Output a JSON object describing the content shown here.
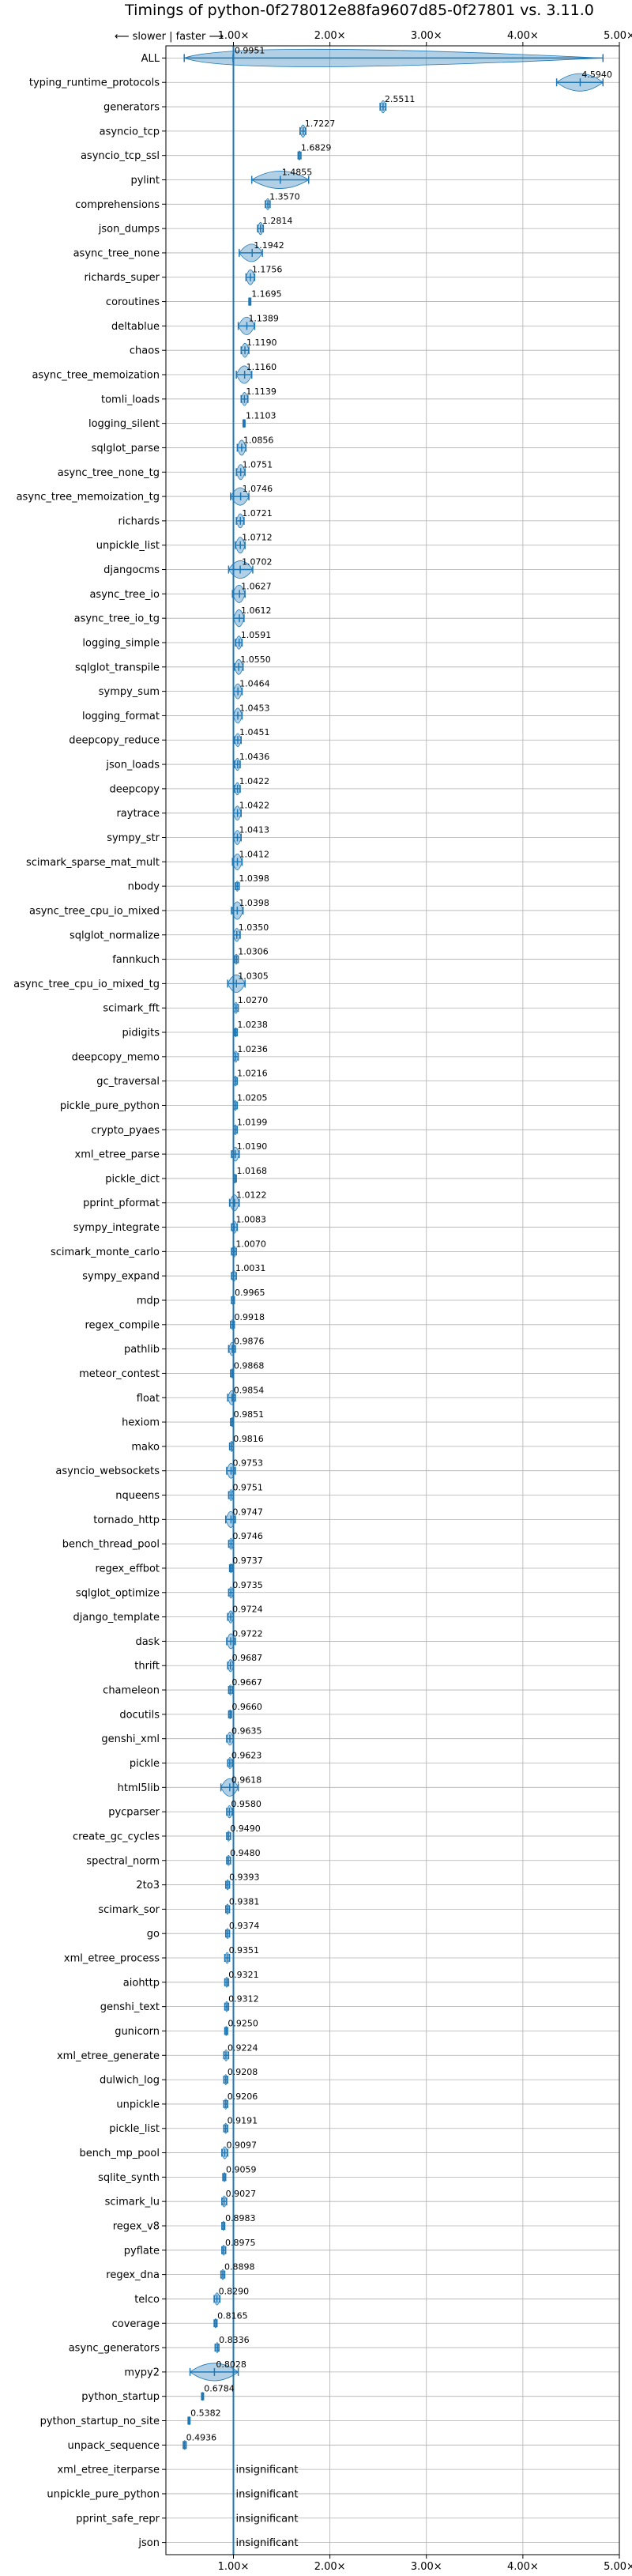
{
  "chart_data": {
    "type": "violin",
    "title": "Timings of python-0f278012e88fa9607d85-0f27801 vs. 3.11.0",
    "direction_note": "⟵ slower | faster ⟶",
    "xlabel": "",
    "ylabel": "",
    "xlim": [
      0.3,
      5.0
    ],
    "x_ticks": [
      1.0,
      2.0,
      3.0,
      4.0,
      5.0
    ],
    "x_tick_labels": [
      "1.00×",
      "2.00×",
      "3.00×",
      "4.00×",
      "5.00×"
    ],
    "grid": true,
    "reference_line": 1.0,
    "colors": {
      "violin": "#1f77b4",
      "reference": "#1f77b4",
      "grid": "#b0b0b0"
    },
    "insignificant_label": "insignificant",
    "benchmarks": [
      {
        "name": "ALL",
        "value": 0.9951,
        "label": "0.9951",
        "lo": 0.49,
        "hi": 4.83
      },
      {
        "name": "typing_runtime_protocols",
        "value": 4.594,
        "label": "4.5940",
        "lo": 4.35,
        "hi": 4.83
      },
      {
        "name": "generators",
        "value": 2.5511,
        "label": "2.5511",
        "lo": 2.52,
        "hi": 2.58
      },
      {
        "name": "asyncio_tcp",
        "value": 1.7227,
        "label": "1.7227",
        "lo": 1.69,
        "hi": 1.75
      },
      {
        "name": "asyncio_tcp_ssl",
        "value": 1.6829,
        "label": "1.6829",
        "lo": 1.67,
        "hi": 1.7
      },
      {
        "name": "pylint",
        "value": 1.4855,
        "label": "1.4855",
        "lo": 1.19,
        "hi": 1.78
      },
      {
        "name": "comprehensions",
        "value": 1.357,
        "label": "1.3570",
        "lo": 1.33,
        "hi": 1.38
      },
      {
        "name": "json_dumps",
        "value": 1.2814,
        "label": "1.2814",
        "lo": 1.25,
        "hi": 1.31
      },
      {
        "name": "async_tree_none",
        "value": 1.1942,
        "label": "1.1942",
        "lo": 1.06,
        "hi": 1.3
      },
      {
        "name": "richards_super",
        "value": 1.1756,
        "label": "1.1756",
        "lo": 1.13,
        "hi": 1.22
      },
      {
        "name": "coroutines",
        "value": 1.1695,
        "label": "1.1695",
        "lo": 1.16,
        "hi": 1.18
      },
      {
        "name": "deltablue",
        "value": 1.1389,
        "label": "1.1389",
        "lo": 1.05,
        "hi": 1.22
      },
      {
        "name": "chaos",
        "value": 1.119,
        "label": "1.1190",
        "lo": 1.08,
        "hi": 1.16
      },
      {
        "name": "async_tree_memoization",
        "value": 1.116,
        "label": "1.1160",
        "lo": 1.03,
        "hi": 1.19
      },
      {
        "name": "tomli_loads",
        "value": 1.1139,
        "label": "1.1139",
        "lo": 1.08,
        "hi": 1.15
      },
      {
        "name": "logging_silent",
        "value": 1.1103,
        "label": "1.1103",
        "lo": 1.1,
        "hi": 1.12
      },
      {
        "name": "sqlglot_parse",
        "value": 1.0856,
        "label": "1.0856",
        "lo": 1.04,
        "hi": 1.13
      },
      {
        "name": "async_tree_none_tg",
        "value": 1.0751,
        "label": "1.0751",
        "lo": 1.03,
        "hi": 1.12
      },
      {
        "name": "async_tree_memoization_tg",
        "value": 1.0746,
        "label": "1.0746",
        "lo": 0.97,
        "hi": 1.16
      },
      {
        "name": "richards",
        "value": 1.0721,
        "label": "1.0721",
        "lo": 1.03,
        "hi": 1.11
      },
      {
        "name": "unpickle_list",
        "value": 1.0712,
        "label": "1.0712",
        "lo": 1.02,
        "hi": 1.12
      },
      {
        "name": "djangocms",
        "value": 1.0702,
        "label": "1.0702",
        "lo": 0.95,
        "hi": 1.2
      },
      {
        "name": "async_tree_io",
        "value": 1.0627,
        "label": "1.0627",
        "lo": 0.99,
        "hi": 1.12
      },
      {
        "name": "async_tree_io_tg",
        "value": 1.0612,
        "label": "1.0612",
        "lo": 1.0,
        "hi": 1.11
      },
      {
        "name": "logging_simple",
        "value": 1.0591,
        "label": "1.0591",
        "lo": 1.02,
        "hi": 1.09
      },
      {
        "name": "sqlglot_transpile",
        "value": 1.055,
        "label": "1.0550",
        "lo": 1.01,
        "hi": 1.1
      },
      {
        "name": "sympy_sum",
        "value": 1.0464,
        "label": "1.0464",
        "lo": 1.0,
        "hi": 1.09
      },
      {
        "name": "logging_format",
        "value": 1.0453,
        "label": "1.0453",
        "lo": 1.0,
        "hi": 1.09
      },
      {
        "name": "deepcopy_reduce",
        "value": 1.0451,
        "label": "1.0451",
        "lo": 1.01,
        "hi": 1.08
      },
      {
        "name": "json_loads",
        "value": 1.0436,
        "label": "1.0436",
        "lo": 1.01,
        "hi": 1.07
      },
      {
        "name": "deepcopy",
        "value": 1.0422,
        "label": "1.0422",
        "lo": 1.01,
        "hi": 1.07
      },
      {
        "name": "raytrace",
        "value": 1.0422,
        "label": "1.0422",
        "lo": 1.0,
        "hi": 1.08
      },
      {
        "name": "sympy_str",
        "value": 1.0413,
        "label": "1.0413",
        "lo": 1.0,
        "hi": 1.08
      },
      {
        "name": "scimark_sparse_mat_mult",
        "value": 1.0412,
        "label": "1.0412",
        "lo": 0.99,
        "hi": 1.09
      },
      {
        "name": "nbody",
        "value": 1.0398,
        "label": "1.0398",
        "lo": 1.02,
        "hi": 1.06
      },
      {
        "name": "async_tree_cpu_io_mixed",
        "value": 1.0398,
        "label": "1.0398",
        "lo": 0.98,
        "hi": 1.1
      },
      {
        "name": "sqlglot_normalize",
        "value": 1.035,
        "label": "1.0350",
        "lo": 1.0,
        "hi": 1.07
      },
      {
        "name": "fannkuch",
        "value": 1.0306,
        "label": "1.0306",
        "lo": 1.01,
        "hi": 1.05
      },
      {
        "name": "async_tree_cpu_io_mixed_tg",
        "value": 1.0305,
        "label": "1.0305",
        "lo": 0.94,
        "hi": 1.12
      },
      {
        "name": "scimark_fft",
        "value": 1.027,
        "label": "1.0270",
        "lo": 1.0,
        "hi": 1.05
      },
      {
        "name": "pidigits",
        "value": 1.0238,
        "label": "1.0238",
        "lo": 1.01,
        "hi": 1.04
      },
      {
        "name": "deepcopy_memo",
        "value": 1.0236,
        "label": "1.0236",
        "lo": 1.0,
        "hi": 1.05
      },
      {
        "name": "gc_traversal",
        "value": 1.0216,
        "label": "1.0216",
        "lo": 1.0,
        "hi": 1.04
      },
      {
        "name": "pickle_pure_python",
        "value": 1.0205,
        "label": "1.0205",
        "lo": 1.0,
        "hi": 1.04
      },
      {
        "name": "crypto_pyaes",
        "value": 1.0199,
        "label": "1.0199",
        "lo": 1.0,
        "hi": 1.04
      },
      {
        "name": "xml_etree_parse",
        "value": 1.019,
        "label": "1.0190",
        "lo": 0.98,
        "hi": 1.06
      },
      {
        "name": "pickle_dict",
        "value": 1.0168,
        "label": "1.0168",
        "lo": 1.0,
        "hi": 1.03
      },
      {
        "name": "pprint_pformat",
        "value": 1.0122,
        "label": "1.0122",
        "lo": 0.96,
        "hi": 1.06
      },
      {
        "name": "sympy_integrate",
        "value": 1.0083,
        "label": "1.0083",
        "lo": 0.98,
        "hi": 1.04
      },
      {
        "name": "scimark_monte_carlo",
        "value": 1.007,
        "label": "1.0070",
        "lo": 0.98,
        "hi": 1.03
      },
      {
        "name": "sympy_expand",
        "value": 1.0031,
        "label": "1.0031",
        "lo": 0.98,
        "hi": 1.03
      },
      {
        "name": "mdp",
        "value": 0.9965,
        "label": "0.9965",
        "lo": 0.98,
        "hi": 1.01
      },
      {
        "name": "regex_compile",
        "value": 0.9918,
        "label": "0.9918",
        "lo": 0.97,
        "hi": 1.01
      },
      {
        "name": "pathlib",
        "value": 0.9876,
        "label": "0.9876",
        "lo": 0.95,
        "hi": 1.02
      },
      {
        "name": "meteor_contest",
        "value": 0.9868,
        "label": "0.9868",
        "lo": 0.97,
        "hi": 1.0
      },
      {
        "name": "float",
        "value": 0.9854,
        "label": "0.9854",
        "lo": 0.94,
        "hi": 1.02
      },
      {
        "name": "hexiom",
        "value": 0.9851,
        "label": "0.9851",
        "lo": 0.97,
        "hi": 1.0
      },
      {
        "name": "mako",
        "value": 0.9816,
        "label": "0.9816",
        "lo": 0.96,
        "hi": 1.0
      },
      {
        "name": "asyncio_websockets",
        "value": 0.9753,
        "label": "0.9753",
        "lo": 0.93,
        "hi": 1.02
      },
      {
        "name": "nqueens",
        "value": 0.9751,
        "label": "0.9751",
        "lo": 0.95,
        "hi": 1.0
      },
      {
        "name": "tornado_http",
        "value": 0.9747,
        "label": "0.9747",
        "lo": 0.92,
        "hi": 1.02
      },
      {
        "name": "bench_thread_pool",
        "value": 0.9746,
        "label": "0.9746",
        "lo": 0.95,
        "hi": 1.0
      },
      {
        "name": "regex_effbot",
        "value": 0.9737,
        "label": "0.9737",
        "lo": 0.96,
        "hi": 0.99
      },
      {
        "name": "sqlglot_optimize",
        "value": 0.9735,
        "label": "0.9735",
        "lo": 0.95,
        "hi": 1.0
      },
      {
        "name": "django_template",
        "value": 0.9724,
        "label": "0.9724",
        "lo": 0.94,
        "hi": 1.0
      },
      {
        "name": "dask",
        "value": 0.9722,
        "label": "0.9722",
        "lo": 0.93,
        "hi": 1.02
      },
      {
        "name": "thrift",
        "value": 0.9687,
        "label": "0.9687",
        "lo": 0.94,
        "hi": 1.0
      },
      {
        "name": "chameleon",
        "value": 0.9667,
        "label": "0.9667",
        "lo": 0.95,
        "hi": 0.99
      },
      {
        "name": "docutils",
        "value": 0.966,
        "label": "0.9660",
        "lo": 0.95,
        "hi": 0.98
      },
      {
        "name": "genshi_xml",
        "value": 0.9635,
        "label": "0.9635",
        "lo": 0.93,
        "hi": 1.0
      },
      {
        "name": "pickle",
        "value": 0.9623,
        "label": "0.9623",
        "lo": 0.94,
        "hi": 0.99
      },
      {
        "name": "html5lib",
        "value": 0.9618,
        "label": "0.9618",
        "lo": 0.87,
        "hi": 1.05
      },
      {
        "name": "pycparser",
        "value": 0.958,
        "label": "0.9580",
        "lo": 0.93,
        "hi": 0.99
      },
      {
        "name": "create_gc_cycles",
        "value": 0.949,
        "label": "0.9490",
        "lo": 0.93,
        "hi": 0.97
      },
      {
        "name": "spectral_norm",
        "value": 0.948,
        "label": "0.9480",
        "lo": 0.93,
        "hi": 0.97
      },
      {
        "name": "2to3",
        "value": 0.9393,
        "label": "0.9393",
        "lo": 0.92,
        "hi": 0.96
      },
      {
        "name": "scimark_sor",
        "value": 0.9381,
        "label": "0.9381",
        "lo": 0.92,
        "hi": 0.96
      },
      {
        "name": "go",
        "value": 0.9374,
        "label": "0.9374",
        "lo": 0.92,
        "hi": 0.96
      },
      {
        "name": "xml_etree_process",
        "value": 0.9351,
        "label": "0.9351",
        "lo": 0.91,
        "hi": 0.96
      },
      {
        "name": "aiohttp",
        "value": 0.9321,
        "label": "0.9321",
        "lo": 0.91,
        "hi": 0.95
      },
      {
        "name": "genshi_text",
        "value": 0.9312,
        "label": "0.9312",
        "lo": 0.91,
        "hi": 0.95
      },
      {
        "name": "gunicorn",
        "value": 0.925,
        "label": "0.9250",
        "lo": 0.91,
        "hi": 0.94
      },
      {
        "name": "xml_etree_generate",
        "value": 0.9224,
        "label": "0.9224",
        "lo": 0.9,
        "hi": 0.95
      },
      {
        "name": "dulwich_log",
        "value": 0.9208,
        "label": "0.9208",
        "lo": 0.9,
        "hi": 0.94
      },
      {
        "name": "unpickle",
        "value": 0.9206,
        "label": "0.9206",
        "lo": 0.9,
        "hi": 0.94
      },
      {
        "name": "pickle_list",
        "value": 0.9191,
        "label": "0.9191",
        "lo": 0.9,
        "hi": 0.94
      },
      {
        "name": "bench_mp_pool",
        "value": 0.9097,
        "label": "0.9097",
        "lo": 0.88,
        "hi": 0.94
      },
      {
        "name": "sqlite_synth",
        "value": 0.9059,
        "label": "0.9059",
        "lo": 0.89,
        "hi": 0.92
      },
      {
        "name": "scimark_lu",
        "value": 0.9027,
        "label": "0.9027",
        "lo": 0.88,
        "hi": 0.93
      },
      {
        "name": "regex_v8",
        "value": 0.8983,
        "label": "0.8983",
        "lo": 0.88,
        "hi": 0.91
      },
      {
        "name": "pyflate",
        "value": 0.8975,
        "label": "0.8975",
        "lo": 0.88,
        "hi": 0.92
      },
      {
        "name": "regex_dna",
        "value": 0.8898,
        "label": "0.8898",
        "lo": 0.87,
        "hi": 0.91
      },
      {
        "name": "telco",
        "value": 0.829,
        "label": "0.8290",
        "lo": 0.8,
        "hi": 0.86
      },
      {
        "name": "coverage",
        "value": 0.8165,
        "label": "0.8165",
        "lo": 0.8,
        "hi": 0.83
      },
      {
        "name": "async_generators",
        "value": 0.8336,
        "label": "0.8336",
        "lo": 0.81,
        "hi": 0.85
      },
      {
        "name": "mypy2",
        "value": 0.8028,
        "label": "0.8028",
        "lo": 0.55,
        "hi": 1.05
      },
      {
        "name": "python_startup",
        "value": 0.6784,
        "label": "0.6784",
        "lo": 0.67,
        "hi": 0.69
      },
      {
        "name": "python_startup_no_site",
        "value": 0.5382,
        "label": "0.5382",
        "lo": 0.53,
        "hi": 0.55
      },
      {
        "name": "unpack_sequence",
        "value": 0.4936,
        "label": "0.4936",
        "lo": 0.48,
        "hi": 0.51
      },
      {
        "name": "xml_etree_iterparse",
        "value": null,
        "label": "",
        "insignificant": true
      },
      {
        "name": "unpickle_pure_python",
        "value": null,
        "label": "",
        "insignificant": true
      },
      {
        "name": "pprint_safe_repr",
        "value": null,
        "label": "",
        "insignificant": true
      },
      {
        "name": "json",
        "value": null,
        "label": "",
        "insignificant": true
      }
    ]
  }
}
